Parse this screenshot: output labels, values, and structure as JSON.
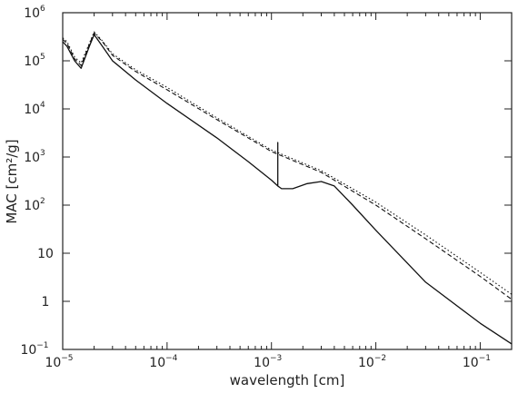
{
  "chart_data": {
    "type": "line",
    "xlabel": "wavelength [cm]",
    "ylabel": "MAC [cm²/g]",
    "x_scale": "log",
    "y_scale": "log",
    "xlim": [
      1e-05,
      0.2
    ],
    "ylim": [
      0.1,
      1000000
    ],
    "grid": false,
    "x_ticks": [
      {
        "value": 1e-05,
        "base": "10",
        "exp": "−5"
      },
      {
        "value": 0.0001,
        "base": "10",
        "exp": "−4"
      },
      {
        "value": 0.001,
        "base": "10",
        "exp": "−3"
      },
      {
        "value": 0.01,
        "base": "10",
        "exp": "−2"
      },
      {
        "value": 0.1,
        "base": "10",
        "exp": "−1"
      }
    ],
    "y_ticks": [
      {
        "value": 0.1,
        "base": "10",
        "exp": "−1"
      },
      {
        "value": 1,
        "base": "1",
        "exp": ""
      },
      {
        "value": 10,
        "base": "10",
        "exp": ""
      },
      {
        "value": 100,
        "base": "10",
        "exp": "2"
      },
      {
        "value": 1000,
        "base": "10",
        "exp": "3"
      },
      {
        "value": 10000,
        "base": "10",
        "exp": "4"
      },
      {
        "value": 100000,
        "base": "10",
        "exp": "5"
      },
      {
        "value": 1000000,
        "base": "10",
        "exp": "6"
      }
    ],
    "series": [
      {
        "style": "solid",
        "x": [
          1e-05,
          1.1e-05,
          1.3e-05,
          1.5e-05,
          1.8e-05,
          2e-05,
          2.4e-05,
          3e-05,
          5e-05,
          0.0001,
          0.0003,
          0.0006,
          0.001,
          0.00115,
          0.00115,
          0.00115,
          0.00125,
          0.0016,
          0.0022,
          0.003,
          0.004,
          0.006,
          0.01,
          0.03,
          0.1,
          0.2
        ],
        "y": [
          250000,
          200000,
          100000,
          70000,
          200000,
          350000,
          200000,
          100000,
          40000,
          13000,
          2500,
          800,
          330,
          250,
          2000,
          250,
          220,
          220,
          280,
          310,
          250,
          100,
          30,
          2.5,
          0.35,
          0.13
        ]
      },
      {
        "style": "dashed",
        "x": [
          1e-05,
          1.1e-05,
          1.3e-05,
          1.5e-05,
          1.8e-05,
          2e-05,
          2.4e-05,
          3e-05,
          5e-05,
          0.0001,
          0.0003,
          0.001,
          0.003,
          0.01,
          0.03,
          0.1,
          0.2
        ],
        "y": [
          280000,
          230000,
          110000,
          80000,
          220000,
          380000,
          250000,
          130000,
          60000,
          25000,
          6000,
          1300,
          480,
          100,
          20,
          3.3,
          1.1
        ]
      },
      {
        "style": "dotted",
        "x": [
          1e-05,
          1.1e-05,
          1.3e-05,
          1.5e-05,
          1.8e-05,
          2e-05,
          2.4e-05,
          3e-05,
          5e-05,
          0.0001,
          0.0003,
          0.001,
          0.003,
          0.01,
          0.03,
          0.1,
          0.2
        ],
        "y": [
          300000,
          250000,
          120000,
          90000,
          230000,
          400000,
          260000,
          140000,
          65000,
          28000,
          6500,
          1400,
          520,
          115,
          24,
          4,
          1.4
        ]
      }
    ]
  }
}
